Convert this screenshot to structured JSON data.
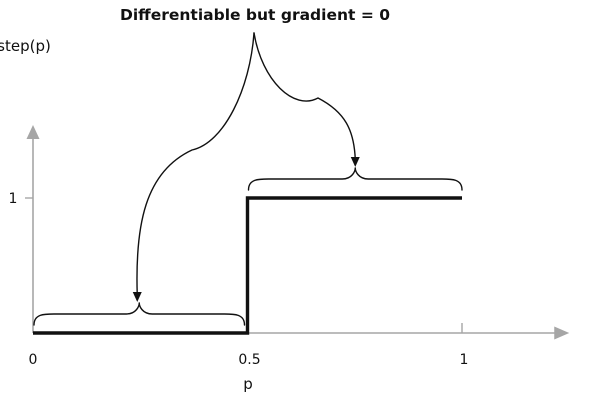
{
  "chart_data": {
    "type": "line",
    "title": "Differentiable but gradient = 0",
    "xlabel": "p",
    "ylabel": "step(p)",
    "x_ticks": [
      {
        "value": 0,
        "label": "0"
      },
      {
        "value": 0.5,
        "label": "0.5"
      },
      {
        "value": 1,
        "label": "1"
      }
    ],
    "y_ticks": [
      {
        "value": 1,
        "label": "1"
      }
    ],
    "xlim": [
      0,
      1.25
    ],
    "ylim": [
      0,
      1.6
    ],
    "series": [
      {
        "x": [
          0,
          0.5,
          0.5,
          1
        ],
        "y": [
          0,
          0,
          1,
          1
        ]
      }
    ],
    "annotations": {
      "brace_ranges": [
        {
          "x_start": 0,
          "x_end": 0.5,
          "y": 0
        },
        {
          "x_start": 0.5,
          "x_end": 1,
          "y": 1
        }
      ]
    },
    "grid": false,
    "legend": "none",
    "colors": {
      "line": "#111111",
      "axis": "#a6a6a6",
      "annotation": "#111111"
    }
  }
}
